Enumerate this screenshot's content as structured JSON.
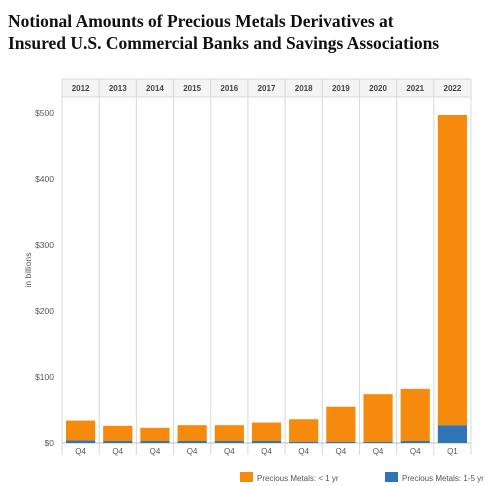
{
  "title_line1": "Notional Amounts of Precious Metals Derivatives at",
  "title_line2": "Insured U.S. Commercial Banks and Savings Associations",
  "chart_data": {
    "type": "bar",
    "stacked": true,
    "years": [
      "2012",
      "2013",
      "2014",
      "2015",
      "2016",
      "2017",
      "2018",
      "2019",
      "2020",
      "2021",
      "2022"
    ],
    "categories": [
      "Q4",
      "Q4",
      "Q4",
      "Q4",
      "Q4",
      "Q4",
      "Q4",
      "Q4",
      "Q4",
      "Q4",
      "Q1"
    ],
    "ylabel": "in billions",
    "ylim": [
      0,
      520
    ],
    "yticks": [
      {
        "value": 0,
        "label": "$0"
      },
      {
        "value": 100,
        "label": "$100"
      },
      {
        "value": 200,
        "label": "$200"
      },
      {
        "value": 300,
        "label": "$300"
      },
      {
        "value": 400,
        "label": "$400"
      },
      {
        "value": 500,
        "label": "$500"
      }
    ],
    "grid": false,
    "legend_position": "bottom",
    "series": [
      {
        "name": "Precious Metals: 1-5 yr",
        "color": "#2e75b6",
        "values": [
          4,
          3,
          3,
          3,
          3,
          3,
          2,
          2,
          2,
          3,
          27
        ]
      },
      {
        "name": "Precious Metals: < 1 yr",
        "color": "#f58a0c",
        "values": [
          30,
          23,
          20,
          24,
          24,
          28,
          34,
          53,
          72,
          79,
          470
        ]
      }
    ],
    "legend_order": [
      "Precious Metals: < 1 yr",
      "Precious Metals: 1-5 yr"
    ]
  }
}
